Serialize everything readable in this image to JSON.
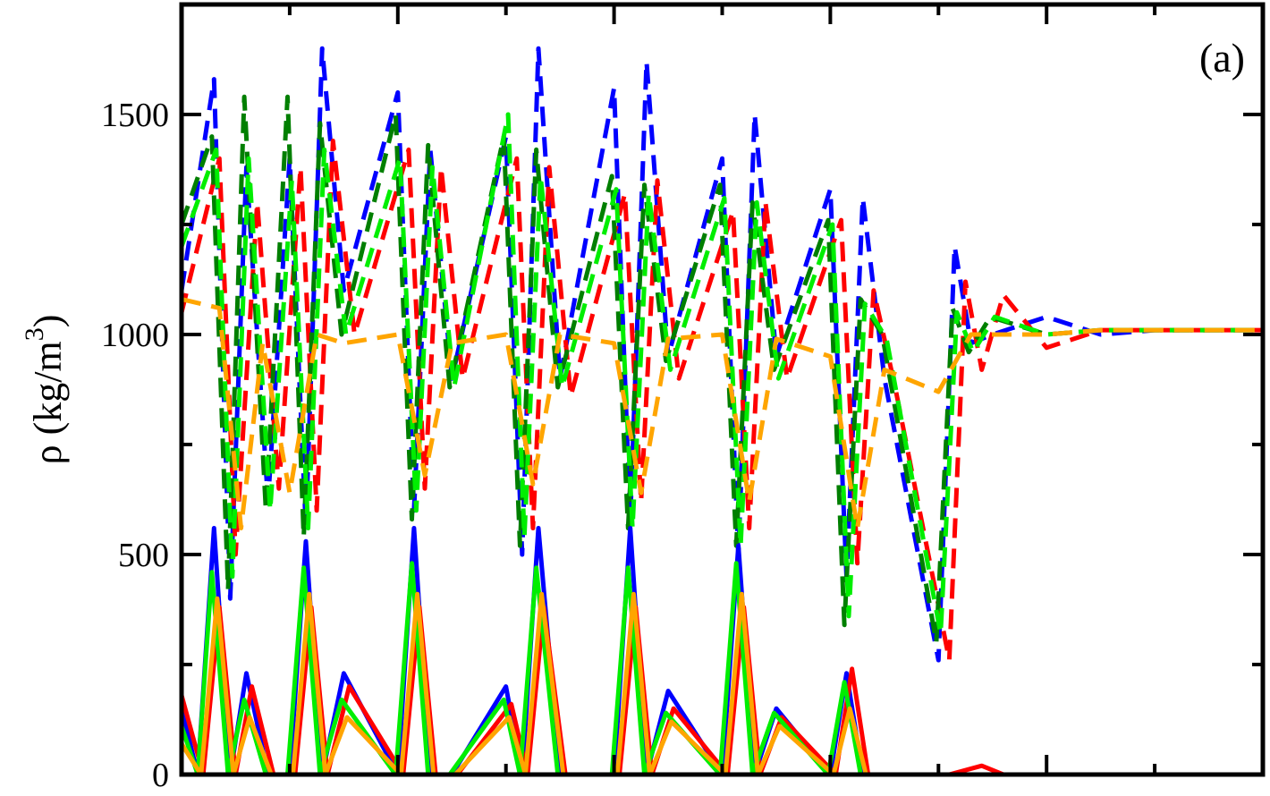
{
  "chart_data": {
    "type": "line",
    "panel_label": "(a)",
    "ylabel": {
      "symbol": "ρ",
      "unit_prefix": "(kg/m",
      "unit_exponent": "3",
      "unit_suffix": ")"
    },
    "xlabel": "",
    "ylim": [
      0,
      1750
    ],
    "yticks": [
      0,
      500,
      1000,
      1500
    ],
    "xlim": [
      0,
      1
    ],
    "grid": false,
    "legend": "none",
    "colors": {
      "blue": "#0000ff",
      "red": "#ff0000",
      "darkgreen": "#007f00",
      "green": "#00ee00",
      "orange": "#ffa500"
    },
    "series": [
      {
        "style": "dashed",
        "color": "blue",
        "x": [
          0.0,
          0.03,
          0.045,
          0.06,
          0.08,
          0.1,
          0.115,
          0.13,
          0.15,
          0.2,
          0.215,
          0.23,
          0.25,
          0.3,
          0.315,
          0.33,
          0.35,
          0.4,
          0.415,
          0.43,
          0.45,
          0.5,
          0.515,
          0.53,
          0.55,
          0.6,
          0.615,
          0.63,
          0.65,
          0.7,
          0.715,
          0.73,
          0.75,
          0.8,
          0.85,
          0.9,
          1.0
        ],
        "y": [
          1100,
          1580,
          400,
          1380,
          620,
          1400,
          560,
          1650,
          1100,
          1550,
          600,
          1420,
          900,
          1450,
          500,
          1650,
          900,
          1560,
          580,
          1620,
          950,
          1400,
          500,
          1500,
          950,
          1330,
          450,
          1310,
          900,
          260,
          1200,
          980,
          1000,
          1040,
          1000,
          1010,
          1010
        ]
      },
      {
        "style": "dashed",
        "color": "red",
        "x": [
          0.0,
          0.035,
          0.05,
          0.07,
          0.09,
          0.11,
          0.125,
          0.14,
          0.16,
          0.21,
          0.225,
          0.24,
          0.26,
          0.31,
          0.325,
          0.34,
          0.36,
          0.41,
          0.425,
          0.44,
          0.46,
          0.51,
          0.525,
          0.54,
          0.56,
          0.61,
          0.625,
          0.64,
          0.66,
          0.71,
          0.725,
          0.74,
          0.76,
          0.8,
          0.85,
          0.9,
          1.0
        ],
        "y": [
          1050,
          1400,
          500,
          1300,
          650,
          1380,
          600,
          1440,
          1000,
          1420,
          650,
          1380,
          900,
          1400,
          560,
          1380,
          860,
          1320,
          620,
          1350,
          900,
          1280,
          560,
          1300,
          900,
          1260,
          480,
          1100,
          880,
          260,
          1120,
          920,
          1090,
          970,
          1010,
          1010,
          1010
        ]
      },
      {
        "style": "dashed",
        "color": "darkgreen",
        "x": [
          0.0,
          0.028,
          0.043,
          0.058,
          0.078,
          0.098,
          0.113,
          0.128,
          0.148,
          0.198,
          0.213,
          0.228,
          0.248,
          0.298,
          0.313,
          0.328,
          0.348,
          0.398,
          0.413,
          0.428,
          0.448,
          0.498,
          0.513,
          0.528,
          0.548,
          0.598,
          0.613,
          0.628,
          0.648,
          0.698,
          0.713,
          0.728,
          0.748,
          0.8,
          0.85,
          0.9,
          1.0
        ],
        "y": [
          1250,
          1450,
          420,
          1540,
          600,
          1540,
          540,
          1480,
          1000,
          1500,
          580,
          1430,
          880,
          1450,
          520,
          1420,
          880,
          1360,
          560,
          1340,
          940,
          1340,
          520,
          1300,
          920,
          1260,
          340,
          1080,
          1000,
          300,
          1060,
          960,
          1040,
          1000,
          1010,
          1010,
          1010
        ]
      },
      {
        "style": "dashed",
        "color": "green",
        "x": [
          0.0,
          0.032,
          0.047,
          0.062,
          0.082,
          0.102,
          0.117,
          0.132,
          0.152,
          0.202,
          0.217,
          0.232,
          0.252,
          0.302,
          0.317,
          0.332,
          0.352,
          0.402,
          0.417,
          0.432,
          0.452,
          0.502,
          0.517,
          0.532,
          0.552,
          0.602,
          0.617,
          0.632,
          0.652,
          0.702,
          0.717,
          0.732,
          0.752,
          0.8,
          0.85,
          0.9,
          1.0
        ],
        "y": [
          1200,
          1420,
          450,
          1400,
          600,
          1350,
          560,
          1420,
          1000,
          1400,
          600,
          1380,
          880,
          1500,
          540,
          1360,
          880,
          1330,
          560,
          1320,
          920,
          1310,
          520,
          1300,
          900,
          1250,
          360,
          1070,
          990,
          320,
          1050,
          960,
          1040,
          1000,
          1010,
          1010,
          1010
        ]
      },
      {
        "style": "dashed",
        "color": "orange",
        "x": [
          0.0,
          0.035,
          0.055,
          0.075,
          0.1,
          0.125,
          0.15,
          0.2,
          0.225,
          0.25,
          0.3,
          0.325,
          0.35,
          0.4,
          0.425,
          0.45,
          0.5,
          0.525,
          0.55,
          0.6,
          0.625,
          0.65,
          0.7,
          0.73,
          0.76,
          0.8,
          0.85,
          0.9,
          1.0
        ],
        "y": [
          1080,
          1060,
          560,
          980,
          640,
          1000,
          980,
          1000,
          680,
          980,
          1000,
          660,
          1000,
          980,
          640,
          990,
          1000,
          620,
          990,
          950,
          560,
          920,
          870,
          1000,
          1000,
          1000,
          1010,
          1010,
          1010
        ]
      },
      {
        "style": "solid",
        "color": "blue",
        "x": [
          0.0,
          0.015,
          0.03,
          0.045,
          0.06,
          0.08,
          0.1,
          0.115,
          0.13,
          0.15,
          0.2,
          0.215,
          0.23,
          0.25,
          0.3,
          0.315,
          0.33,
          0.35,
          0.4,
          0.415,
          0.43,
          0.45,
          0.5,
          0.515,
          0.53,
          0.55,
          0.6,
          0.615,
          0.63,
          0.65,
          0.7,
          0.76,
          0.8,
          1.0
        ],
        "y": [
          150,
          0,
          560,
          0,
          230,
          0,
          0,
          530,
          0,
          230,
          0,
          560,
          0,
          0,
          200,
          0,
          560,
          0,
          0,
          560,
          0,
          190,
          0,
          520,
          0,
          150,
          0,
          230,
          0,
          0,
          0,
          0,
          0,
          0
        ]
      },
      {
        "style": "solid",
        "color": "red",
        "x": [
          0.0,
          0.02,
          0.035,
          0.05,
          0.065,
          0.085,
          0.105,
          0.12,
          0.135,
          0.155,
          0.205,
          0.22,
          0.235,
          0.255,
          0.305,
          0.32,
          0.335,
          0.355,
          0.405,
          0.42,
          0.435,
          0.455,
          0.505,
          0.52,
          0.535,
          0.555,
          0.605,
          0.62,
          0.635,
          0.655,
          0.71,
          0.74,
          0.76,
          0.8,
          1.0
        ],
        "y": [
          180,
          0,
          380,
          0,
          200,
          0,
          0,
          380,
          0,
          200,
          0,
          380,
          0,
          0,
          160,
          0,
          380,
          0,
          0,
          380,
          0,
          150,
          0,
          380,
          0,
          130,
          0,
          240,
          0,
          0,
          0,
          20,
          0,
          0,
          0
        ]
      },
      {
        "style": "solid",
        "color": "green",
        "x": [
          0.0,
          0.015,
          0.028,
          0.043,
          0.058,
          0.078,
          0.098,
          0.113,
          0.128,
          0.148,
          0.198,
          0.213,
          0.228,
          0.248,
          0.298,
          0.313,
          0.328,
          0.348,
          0.398,
          0.413,
          0.428,
          0.448,
          0.498,
          0.513,
          0.528,
          0.548,
          0.598,
          0.613,
          0.628,
          0.648,
          0.7,
          0.8,
          1.0
        ],
        "y": [
          110,
          0,
          460,
          0,
          170,
          0,
          0,
          470,
          0,
          170,
          0,
          480,
          0,
          0,
          170,
          0,
          470,
          0,
          0,
          470,
          0,
          140,
          0,
          480,
          0,
          140,
          0,
          210,
          0,
          0,
          0,
          0,
          0
        ]
      },
      {
        "style": "solid",
        "color": "orange",
        "x": [
          0.0,
          0.018,
          0.033,
          0.048,
          0.063,
          0.083,
          0.103,
          0.118,
          0.133,
          0.153,
          0.203,
          0.218,
          0.233,
          0.253,
          0.303,
          0.318,
          0.333,
          0.353,
          0.403,
          0.418,
          0.433,
          0.453,
          0.503,
          0.518,
          0.533,
          0.553,
          0.603,
          0.618,
          0.633,
          0.653,
          0.7,
          0.8,
          1.0
        ],
        "y": [
          70,
          0,
          400,
          0,
          130,
          0,
          0,
          410,
          0,
          130,
          0,
          410,
          0,
          0,
          130,
          0,
          410,
          0,
          0,
          410,
          0,
          120,
          0,
          410,
          0,
          110,
          0,
          150,
          0,
          0,
          0,
          0,
          0
        ]
      }
    ]
  }
}
